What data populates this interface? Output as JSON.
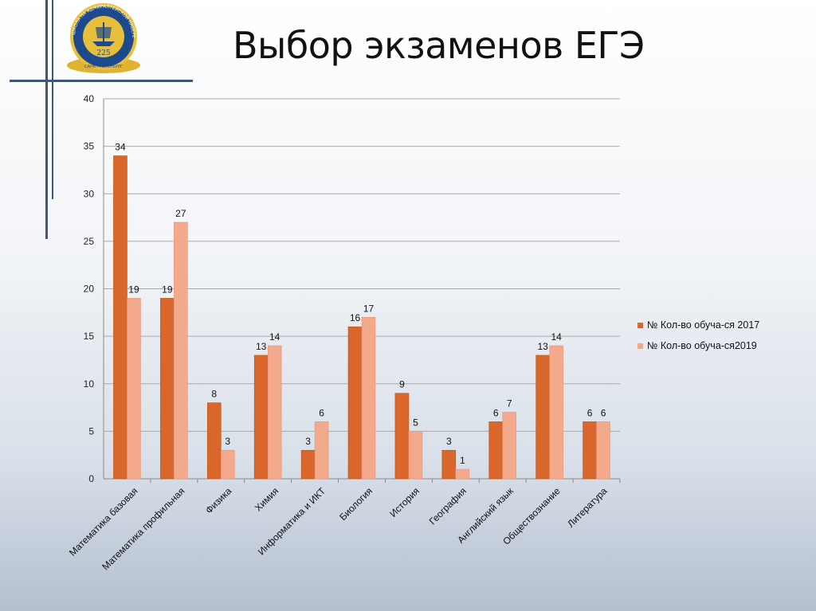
{
  "slide": {
    "title": "Выбор экзаменов ЕГЭ"
  },
  "logo": {
    "text": "ШКОЛА НА АДМИРАЛТЕЙСКОЙ НАБЕРЕЖНОЙ",
    "number": "225",
    "city": "САНКТ-ПЕТЕРБУРГ"
  },
  "colors": {
    "series_2017": "#d9662a",
    "series_2019": "#f2a98c",
    "decor": "#3e5678"
  },
  "chart_data": {
    "type": "bar",
    "title": "",
    "xlabel": "",
    "ylabel": "",
    "ylim": [
      0,
      40
    ],
    "yticks": [
      0,
      5,
      10,
      15,
      20,
      25,
      30,
      35,
      40
    ],
    "grid": true,
    "legend_position": "right",
    "categories": [
      "Математика базовая",
      "Математика профильная",
      "Физика",
      "Химия",
      "Информатика и ИКТ",
      "Биология",
      "История",
      "География",
      "Английский язык",
      "Обществознание",
      "Литература"
    ],
    "series": [
      {
        "name": "№ Кол-во обуча-ся 2017",
        "values": [
          34,
          19,
          8,
          13,
          3,
          16,
          9,
          3,
          6,
          13,
          6
        ]
      },
      {
        "name": "№ Кол-во обуча-ся2019",
        "values": [
          19,
          27,
          3,
          14,
          6,
          17,
          5,
          1,
          7,
          14,
          6
        ]
      }
    ]
  }
}
